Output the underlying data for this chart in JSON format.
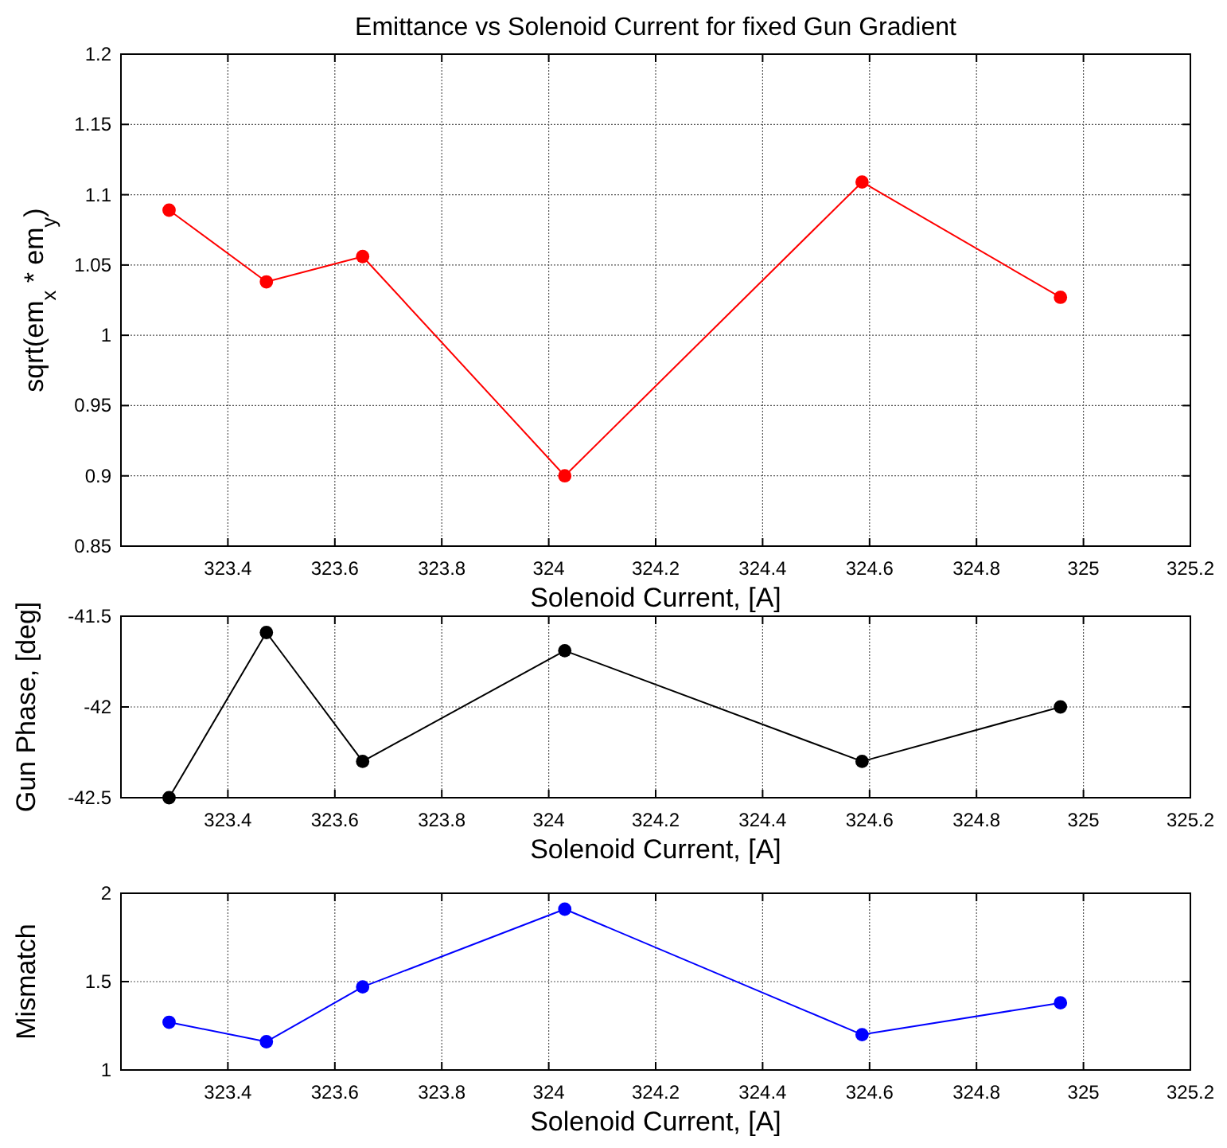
{
  "chart_data": [
    {
      "type": "line",
      "title": "Emittance vs Solenoid Current for fixed Gun Gradient",
      "xlabel": "Solenoid Current, [A]",
      "ylabel": "sqrt(em$_{x}$ * em$_{y}$)",
      "x": [
        323.29,
        323.472,
        323.652,
        324.03,
        324.586,
        324.957
      ],
      "series": [
        {
          "color": "#ff0000",
          "values": [
            1.089,
            1.038,
            1.056,
            0.9,
            1.109,
            1.027
          ]
        }
      ],
      "xlim": [
        323.2,
        325.2
      ],
      "xticks": [
        323.4,
        323.6,
        323.8,
        324,
        324.2,
        324.4,
        324.6,
        324.8,
        325,
        325.2
      ],
      "ylim": [
        0.85,
        1.2
      ],
      "yticks": [
        0.85,
        0.9,
        0.95,
        1,
        1.05,
        1.1,
        1.15,
        1.2
      ],
      "grid": true,
      "marker": "circle"
    },
    {
      "type": "line",
      "xlabel": "Solenoid Current, [A]",
      "ylabel": "Gun Phase, [deg]",
      "x": [
        323.29,
        323.472,
        323.652,
        324.03,
        324.586,
        324.957
      ],
      "series": [
        {
          "color": "#000000",
          "values": [
            -42.5,
            -41.59,
            -42.3,
            -41.69,
            -42.3,
            -42.0
          ]
        }
      ],
      "xlim": [
        323.2,
        325.2
      ],
      "xticks": [
        323.4,
        323.6,
        323.8,
        324,
        324.2,
        324.4,
        324.6,
        324.8,
        325,
        325.2
      ],
      "ylim": [
        -42.5,
        -41.5
      ],
      "yticks": [
        -42.5,
        -42,
        -41.5
      ],
      "grid": true,
      "marker": "circle"
    },
    {
      "type": "line",
      "xlabel": "Solenoid Current, [A]",
      "ylabel": "Mismatch",
      "x": [
        323.29,
        323.472,
        323.652,
        324.03,
        324.586,
        324.957
      ],
      "series": [
        {
          "color": "#0000ff",
          "values": [
            1.27,
            1.16,
            1.47,
            1.91,
            1.2,
            1.38
          ]
        }
      ],
      "xlim": [
        323.2,
        325.2
      ],
      "xticks": [
        323.4,
        323.6,
        323.8,
        324,
        324.2,
        324.4,
        324.6,
        324.8,
        325,
        325.2
      ],
      "ylim": [
        1,
        2
      ],
      "yticks": [
        1,
        1.5,
        2
      ],
      "grid": true,
      "marker": "circle"
    }
  ]
}
